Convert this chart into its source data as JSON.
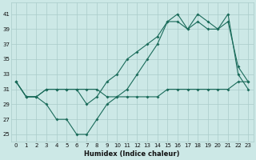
{
  "xlabel": "Humidex (Indice chaleur)",
  "bg_color": "#cce8e6",
  "grid_color": "#aaccca",
  "line_color": "#1a6b5a",
  "xlim": [
    -0.5,
    23.5
  ],
  "ylim": [
    24,
    42.5
  ],
  "yticks": [
    25,
    27,
    29,
    31,
    33,
    35,
    37,
    39,
    41
  ],
  "xticks": [
    0,
    1,
    2,
    3,
    4,
    5,
    6,
    7,
    8,
    9,
    10,
    11,
    12,
    13,
    14,
    15,
    16,
    17,
    18,
    19,
    20,
    21,
    22,
    23
  ],
  "line1_y": [
    32,
    30,
    30,
    31,
    31,
    31,
    31,
    31,
    31,
    30,
    30,
    30,
    30,
    30,
    30,
    31,
    31,
    31,
    31,
    31,
    31,
    31,
    32,
    32
  ],
  "line2_y": [
    32,
    30,
    30,
    31,
    31,
    31,
    31,
    29,
    30,
    32,
    33,
    35,
    36,
    37,
    38,
    40,
    40,
    39,
    40,
    39,
    39,
    40,
    34,
    32
  ],
  "line3_y": [
    32,
    30,
    30,
    29,
    27,
    27,
    25,
    25,
    27,
    29,
    30,
    31,
    33,
    35,
    37,
    40,
    41,
    39,
    41,
    40,
    39,
    41,
    33,
    31
  ]
}
